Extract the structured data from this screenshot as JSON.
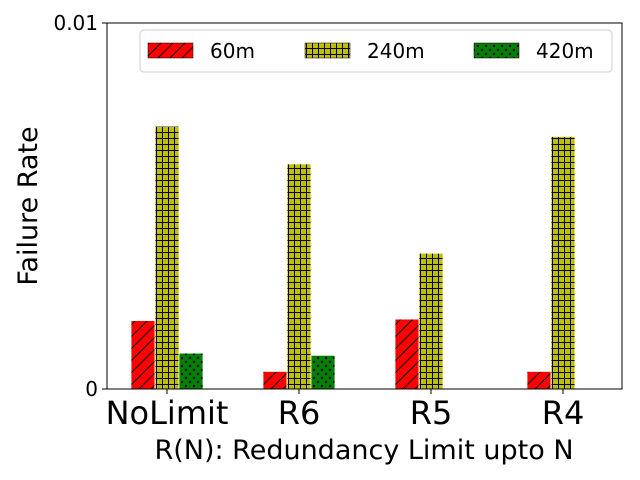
{
  "chart_data": {
    "type": "bar",
    "title": "",
    "xlabel": "R(N): Redundancy Limit upto N",
    "ylabel": "Failure Rate",
    "categories": [
      "NoLimit",
      "R6",
      "R5",
      "R4"
    ],
    "ylim": [
      0,
      0.01
    ],
    "yticks": [
      {
        "value": 0,
        "label": "0"
      },
      {
        "value": 0.01,
        "label": "0.01"
      }
    ],
    "grid": false,
    "legend": {
      "placement": "top-right",
      "columns": 3
    },
    "series": [
      {
        "name": "60m",
        "color": "#ff0000",
        "hatch": "diagonal",
        "values": [
          0.00187,
          0.00048,
          0.00191,
          0.00048
        ]
      },
      {
        "name": "240m",
        "color": "#bfbf00",
        "hatch": "grid",
        "values": [
          0.00718,
          0.00615,
          0.00371,
          0.0069
        ]
      },
      {
        "name": "420m",
        "color": "#008000",
        "hatch": "dots",
        "values": [
          0.00098,
          0.00092,
          0,
          0
        ]
      }
    ]
  }
}
